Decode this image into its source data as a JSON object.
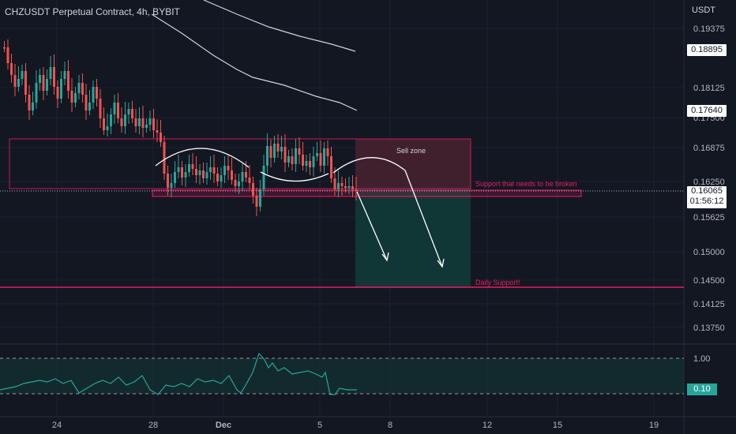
{
  "header": {
    "title": "CHZUSDT Perpetual Contract, 4h, BYBIT",
    "currency": "USDT"
  },
  "price_axis": {
    "ticks": [
      "0.19375",
      "0.18125",
      "0.17500",
      "0.16875",
      "0.16250",
      "0.15625",
      "0.15000",
      "0.14500",
      "0.14125",
      "0.13750"
    ],
    "tag_high": "0.18895",
    "tag_mid": "0.17640",
    "tag_current": "0.16065",
    "tag_countdown": "01:56:12"
  },
  "rsi_axis": {
    "tick_top": "1.00",
    "tag_value": "0.10"
  },
  "time_axis": {
    "labels": [
      "24",
      "28",
      "Dec",
      "5",
      "8",
      "12",
      "15",
      "19"
    ]
  },
  "annotations": {
    "sell_zone": "Sell zone",
    "support_break": "Support that needs to be broken",
    "daily_support": "Daily Support!"
  },
  "colors": {
    "background": "#131722",
    "bull": "#26a69a",
    "bear": "#ef5350",
    "support_line": "#e91e63",
    "sell_zone_fill": "#4a2230",
    "buy_zone_fill": "#123a38",
    "text": "#d1d4dc"
  }
}
